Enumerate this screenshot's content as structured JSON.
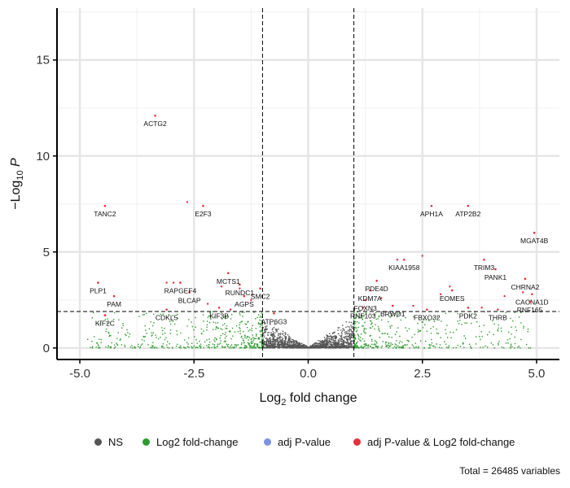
{
  "chart_data": {
    "type": "scatter",
    "subtype": "volcano",
    "xlabel": "Log2 fold change",
    "ylabel": "−Log10 P",
    "xlim": [
      -5.5,
      5.5
    ],
    "ylim": [
      -0.6,
      17.7
    ],
    "x_ticks": [
      "-5.0",
      "-2.5",
      "0.0",
      "2.5",
      "5.0"
    ],
    "x_tick_values": [
      -5.0,
      -2.5,
      0.0,
      2.5,
      5.0
    ],
    "y_ticks": [
      "0",
      "5",
      "10",
      "15"
    ],
    "y_tick_values": [
      0,
      5,
      10,
      15
    ],
    "grid": true,
    "thresholds": {
      "log2fc": [
        -1,
        1
      ],
      "neg_log10_p": 1.9
    },
    "colors": {
      "NS": "#555555",
      "log2fc": "#2e9a2e",
      "pvalue": "#7b93e0",
      "both": "#e8303a"
    },
    "legend": {
      "position": "bottom",
      "entries": [
        "NS",
        "Log2 fold-change",
        "adj P-value",
        "adj P-value & Log2 fold-change"
      ]
    },
    "caption": "Total = 26485 variables",
    "labeled_points": [
      {
        "label": "ACTG2",
        "x": -3.35,
        "y": 12.1
      },
      {
        "label": "TANC2",
        "x": -4.45,
        "y": 7.4
      },
      {
        "label": "E2F3",
        "x": -2.3,
        "y": 7.4
      },
      {
        "label": "APH1A",
        "x": 2.7,
        "y": 7.4
      },
      {
        "label": "ATP2B2",
        "x": 3.5,
        "y": 7.4
      },
      {
        "label": "MGAT4B",
        "x": 4.95,
        "y": 6.0
      },
      {
        "label": "KIAA1958",
        "x": 2.1,
        "y": 4.6
      },
      {
        "label": "TRIM3",
        "x": 3.85,
        "y": 4.6
      },
      {
        "label": "PANK1",
        "x": 4.1,
        "y": 4.1
      },
      {
        "label": "CHRNA2",
        "x": 4.75,
        "y": 3.6
      },
      {
        "label": "PLP1",
        "x": -4.6,
        "y": 3.4
      },
      {
        "label": "PAM",
        "x": -4.25,
        "y": 2.7
      },
      {
        "label": "KIF2C",
        "x": -4.45,
        "y": 1.7
      },
      {
        "label": "RAPGEF4",
        "x": -2.8,
        "y": 3.4
      },
      {
        "label": "BLCAP",
        "x": -2.6,
        "y": 2.9
      },
      {
        "label": "CDKL5",
        "x": -3.1,
        "y": 2.0
      },
      {
        "label": "MCTS1",
        "x": -1.75,
        "y": 3.9
      },
      {
        "label": "RUNDC1",
        "x": -1.5,
        "y": 3.3
      },
      {
        "label": "SMC2",
        "x": -1.05,
        "y": 3.1
      },
      {
        "label": "AGPS",
        "x": -1.4,
        "y": 2.7
      },
      {
        "label": "KIF3B",
        "x": -1.95,
        "y": 2.1
      },
      {
        "label": "ATP6G3",
        "x": -0.75,
        "y": 1.8
      },
      {
        "label": "PDE4D",
        "x": 1.5,
        "y": 3.5
      },
      {
        "label": "KDM7A",
        "x": 1.35,
        "y": 3.0
      },
      {
        "label": "FOXN3",
        "x": 1.25,
        "y": 2.5
      },
      {
        "label": "BRWD1",
        "x": 1.85,
        "y": 2.2
      },
      {
        "label": "RNF103",
        "x": 1.2,
        "y": 2.1
      },
      {
        "label": "FBXO32",
        "x": 2.6,
        "y": 2.0
      },
      {
        "label": "EOMES",
        "x": 3.15,
        "y": 3.0
      },
      {
        "label": "PDK2",
        "x": 3.5,
        "y": 2.1
      },
      {
        "label": "THRB",
        "x": 4.15,
        "y": 2.0
      },
      {
        "label": "CACNA1D",
        "x": 4.9,
        "y": 2.8
      },
      {
        "label": "RNF165",
        "x": 4.85,
        "y": 2.4
      }
    ]
  }
}
